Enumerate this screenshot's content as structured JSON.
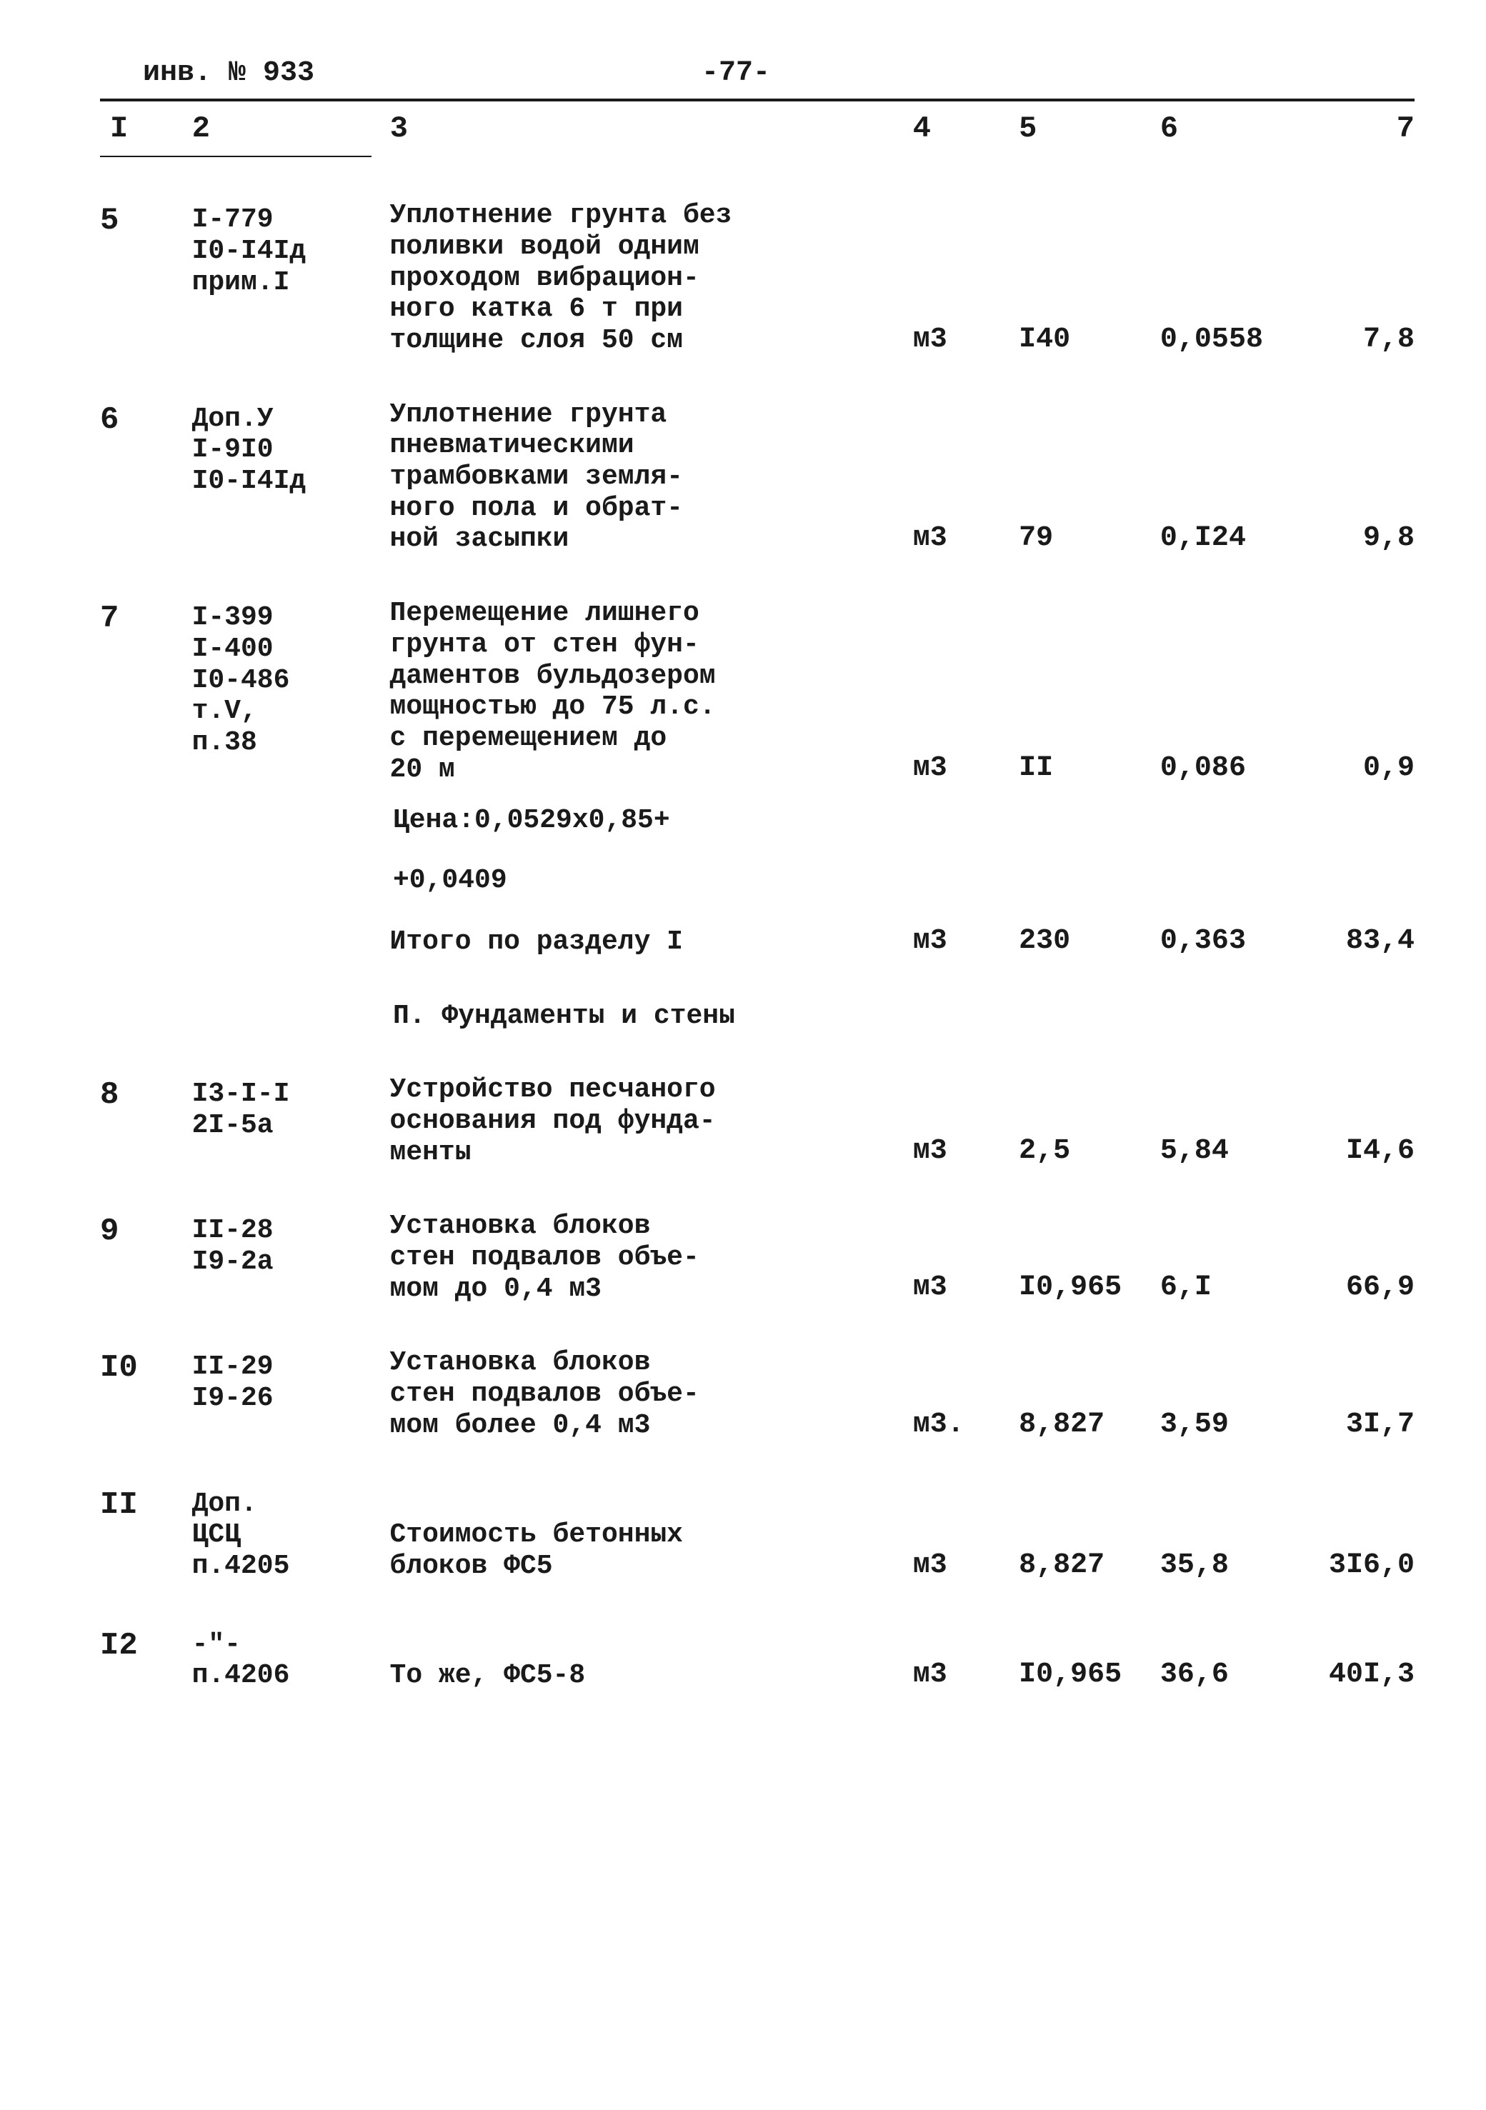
{
  "header": {
    "inv": "инв. № 933",
    "page": "-77-"
  },
  "columns": [
    "I",
    "2",
    "3",
    "4",
    "5",
    "6",
    "7"
  ],
  "rows": [
    {
      "n": "5",
      "code": "I-779\nI0-I4Iд\nприм.I",
      "desc": "Уплотнение грунта без\nполивки водой одним\nпроходом вибрацион-\nного катка 6 т при\nтолщине слоя 50 см",
      "unit": "м3",
      "qty": "I40",
      "price": "0,0558",
      "sum": "7,8"
    },
    {
      "n": "6",
      "code": "Доп.У\nI-9I0\nI0-I4Iд",
      "desc": "Уплотнение грунта\nпневматическими\nтрамбовками земля-\nного пола и обрат-\nной засыпки",
      "unit": "м3",
      "qty": "79",
      "price": "0,I24",
      "sum": "9,8"
    },
    {
      "n": "7",
      "code": "I-399\nI-400\nI0-486\nт.V,\nп.38",
      "desc": "Перемещение лишнего\nгрунта от стен фун-\nдаментов бульдозером\nмощностью до 75 л.с.\nс перемещением до\n20 м",
      "unit": "м3",
      "qty": "II",
      "price": "0,086",
      "sum": "0,9"
    }
  ],
  "notes": [
    "Цена:0,0529х0,85+",
    "+0,0409"
  ],
  "subtotal": {
    "label": "Итого по разделу I",
    "unit": "м3",
    "qty": "230",
    "price": "0,363",
    "sum": "83,4"
  },
  "section2": {
    "title": "П. Фундаменты и стены"
  },
  "rows2": [
    {
      "n": "8",
      "code": "I3-I-I\n2I-5а",
      "desc": "Устройство песчаного\nоснования под фунда-\nменты",
      "unit": "м3",
      "qty": "2,5",
      "price": "5,84",
      "sum": "I4,6"
    },
    {
      "n": "9",
      "code": "II-28\nI9-2а",
      "desc": "Установка блоков\nстен подвалов объе-\nмом до 0,4 м3",
      "unit": "м3",
      "qty": "I0,965",
      "price": "6,I",
      "sum": "66,9"
    },
    {
      "n": "I0",
      "code": "II-29\nI9-26",
      "desc": "Установка блоков\nстен подвалов объе-\nмом более 0,4 м3",
      "unit": "м3.",
      "qty": "8,827",
      "price": "3,59",
      "sum": "3I,7"
    },
    {
      "n": "II",
      "code": "Доп.\nЦСЦ\nп.4205",
      "desc": "Стоимость бетонных\nблоков ФС5",
      "unit": "м3",
      "qty": "8,827",
      "price": "35,8",
      "sum": "3I6,0"
    },
    {
      "n": "I2",
      "code": "-\"-\nп.4206",
      "desc": "То же, ФС5-8",
      "unit": "м3",
      "qty": "I0,965",
      "price": "36,6",
      "sum": "40I,3"
    }
  ]
}
